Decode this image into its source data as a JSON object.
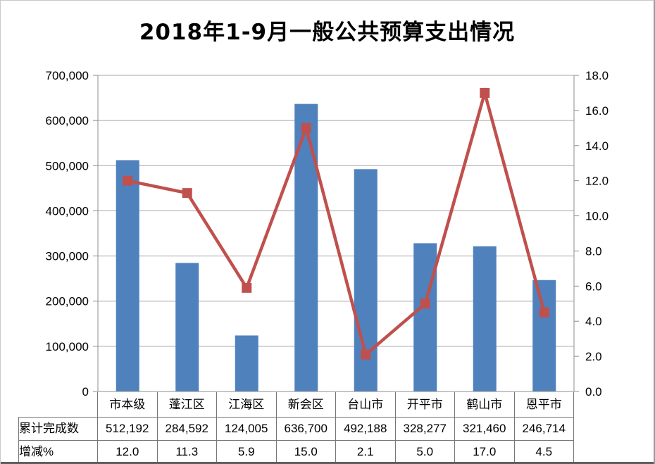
{
  "title": "2018年1-9月一般公共预算支出情况",
  "chart_data": {
    "type": "combo-bar-line",
    "categories": [
      "市本级",
      "蓬江区",
      "江海区",
      "新会区",
      "台山市",
      "开平市",
      "鹤山市",
      "恩平市"
    ],
    "series": [
      {
        "name": "累计完成数",
        "type": "bar",
        "axis": "left",
        "values": [
          512192,
          284592,
          124005,
          636700,
          492188,
          328277,
          321460,
          246714
        ],
        "formatted": [
          "512,192",
          "284,592",
          "124,005",
          "636,700",
          "492,188",
          "328,277",
          "321,460",
          "246,714"
        ]
      },
      {
        "name": "增减%",
        "type": "line",
        "axis": "right",
        "values": [
          12.0,
          11.3,
          5.9,
          15.0,
          2.1,
          5.0,
          17.0,
          4.5
        ],
        "formatted": [
          "12.0",
          "11.3",
          "5.9",
          "15.0",
          "2.1",
          "5.0",
          "17.0",
          "4.5"
        ]
      }
    ],
    "left_axis": {
      "min": 0,
      "max": 700000,
      "step": 100000,
      "tick_labels": [
        "0",
        "100,000",
        "200,000",
        "300,000",
        "400,000",
        "500,000",
        "600,000",
        "700,000"
      ]
    },
    "right_axis": {
      "min": 0,
      "max": 18,
      "step": 2,
      "tick_labels": [
        "0.0",
        "2.0",
        "4.0",
        "6.0",
        "8.0",
        "10.0",
        "12.0",
        "14.0",
        "16.0",
        "18.0"
      ]
    },
    "grid": "horizontal-major-left-axis",
    "legend": "none",
    "data_table_shown": true
  },
  "colors": {
    "bar": "#4f81bd",
    "line": "#c0504d",
    "marker": "#c0504d",
    "grid": "#a6a6a6",
    "axis": "#8c8c8c",
    "table_border": "#767676",
    "text": "#000000",
    "frame_border": "#c9c9c9",
    "frame_side": "#9a9a9a",
    "bottom_band": "#5f5f5f"
  }
}
